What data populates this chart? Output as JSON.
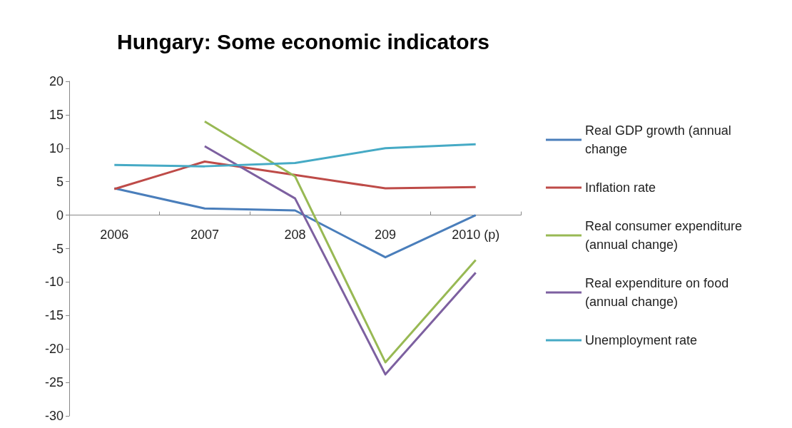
{
  "chart_data": {
    "type": "line",
    "title": "Hungary: Some economic indicators",
    "categories": [
      "2006",
      "2007",
      "208",
      "209",
      "2010 (p)"
    ],
    "series": [
      {
        "name": "Real GDP growth (annual change",
        "color": "#4a7ebb",
        "values": [
          4,
          1,
          0.7,
          -6.3,
          0
        ]
      },
      {
        "name": "Inflation rate",
        "color": "#be4b48",
        "values": [
          3.9,
          8,
          6,
          4,
          4.2
        ]
      },
      {
        "name": "Real consumer expenditure (annual change)",
        "color": "#98b954",
        "values": [
          null,
          14,
          5.8,
          -22,
          -6.7
        ]
      },
      {
        "name": "Real expenditure on food (annual change)",
        "color": "#7d60a0",
        "values": [
          null,
          10.3,
          2.5,
          -23.8,
          -8.6
        ]
      },
      {
        "name": "Unemployment rate",
        "color": "#46aac5",
        "values": [
          7.5,
          7.3,
          7.8,
          10,
          10.6
        ]
      }
    ],
    "ylim": [
      -30,
      20
    ],
    "yticks": [
      -30,
      -25,
      -20,
      -15,
      -10,
      -5,
      0,
      5,
      10,
      15,
      20
    ],
    "grid": false,
    "legend": "right",
    "marker": "none",
    "line_style": "solid"
  }
}
